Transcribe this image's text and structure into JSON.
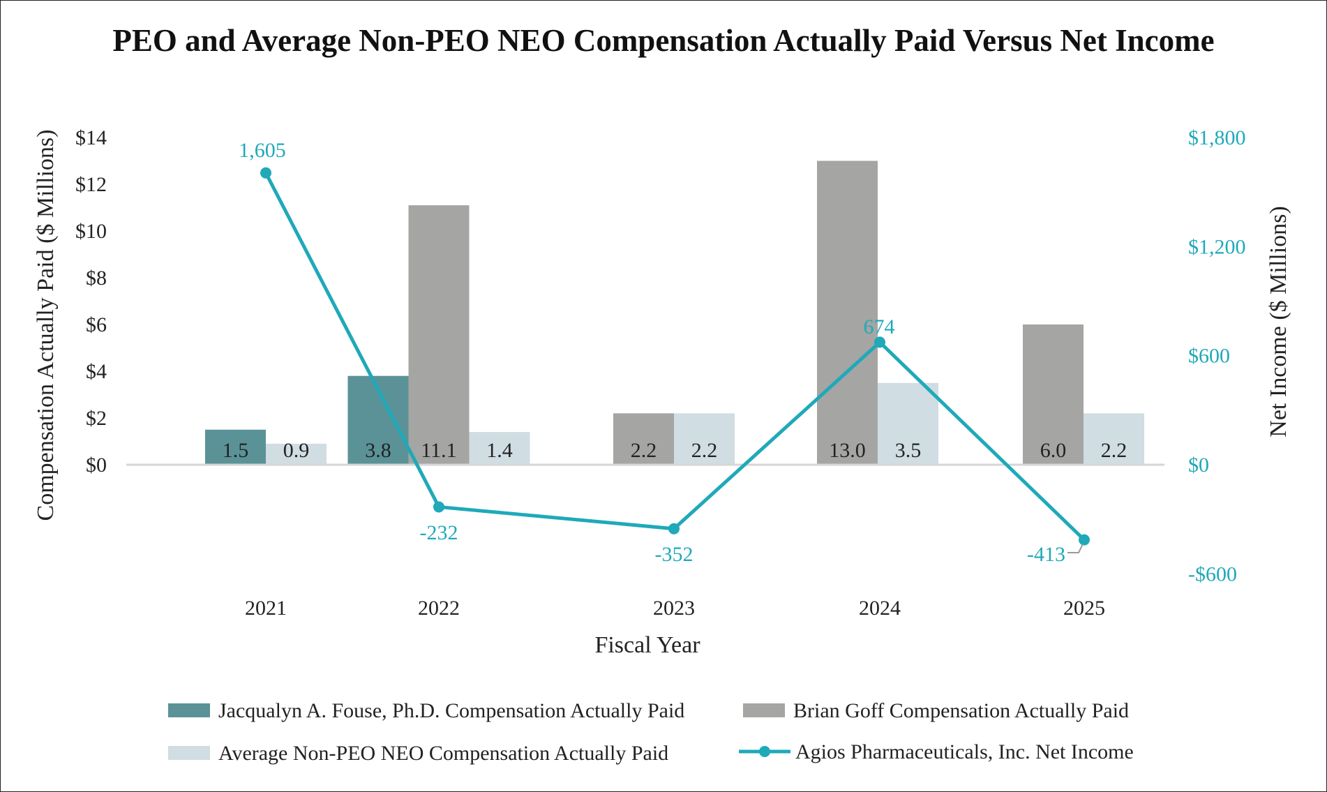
{
  "chart_data": {
    "type": "bar",
    "title": "PEO and Average Non-PEO NEO Compensation Actually Paid Versus Net Income",
    "xlabel": "Fiscal Year",
    "ylabel": "Compensation Actually Paid ($ Millions)",
    "y2label": "Net Income ($ Millions)",
    "categories": [
      "2021",
      "2022",
      "2023",
      "2024",
      "2025"
    ],
    "ylim": [
      0,
      14
    ],
    "y2lim": [
      -600,
      1800
    ],
    "yticks": [
      {
        "value": 0,
        "label": "$0"
      },
      {
        "value": 2,
        "label": "$2"
      },
      {
        "value": 4,
        "label": "$4"
      },
      {
        "value": 6,
        "label": "$6"
      },
      {
        "value": 8,
        "label": "$8"
      },
      {
        "value": 10,
        "label": "$10"
      },
      {
        "value": 12,
        "label": "$12"
      },
      {
        "value": 14,
        "label": "$14"
      }
    ],
    "y2ticks": [
      {
        "value": -600,
        "label": "-$600"
      },
      {
        "value": 0,
        "label": "$0"
      },
      {
        "value": 600,
        "label": "$600"
      },
      {
        "value": 1200,
        "label": "$1,200"
      },
      {
        "value": 1800,
        "label": "$1,800"
      }
    ],
    "series": [
      {
        "name": "Jacqualyn A. Fouse, Ph.D. Compensation Actually Paid",
        "kind": "bar",
        "color": "#5a9297",
        "values": [
          1.5,
          3.8,
          null,
          null,
          null
        ],
        "labels": [
          "1.5",
          "3.8",
          "",
          "",
          ""
        ]
      },
      {
        "name": "Brian Goff Compensation Actually Paid",
        "kind": "bar",
        "color": "#a5a5a3",
        "values": [
          null,
          11.1,
          2.2,
          13.0,
          6.0
        ],
        "labels": [
          "",
          "11.1",
          "2.2",
          "13.0",
          "6.0"
        ]
      },
      {
        "name": "Average Non-PEO NEO Compensation Actually Paid",
        "kind": "bar",
        "color": "#d0dde2",
        "values": [
          0.9,
          1.4,
          2.2,
          3.5,
          2.2
        ],
        "labels": [
          "0.9",
          "1.4",
          "2.2",
          "3.5",
          "2.2"
        ]
      },
      {
        "name": "Agios Pharmaceuticals, Inc. Net Income",
        "kind": "line",
        "axis": "right",
        "color": "#1fa9b9",
        "values": [
          1605,
          -232,
          -352,
          674,
          -413
        ],
        "labels": [
          "1,605",
          "-232",
          "-352",
          "674",
          "-413"
        ]
      }
    ],
    "legend": "bottom",
    "grid": false
  }
}
